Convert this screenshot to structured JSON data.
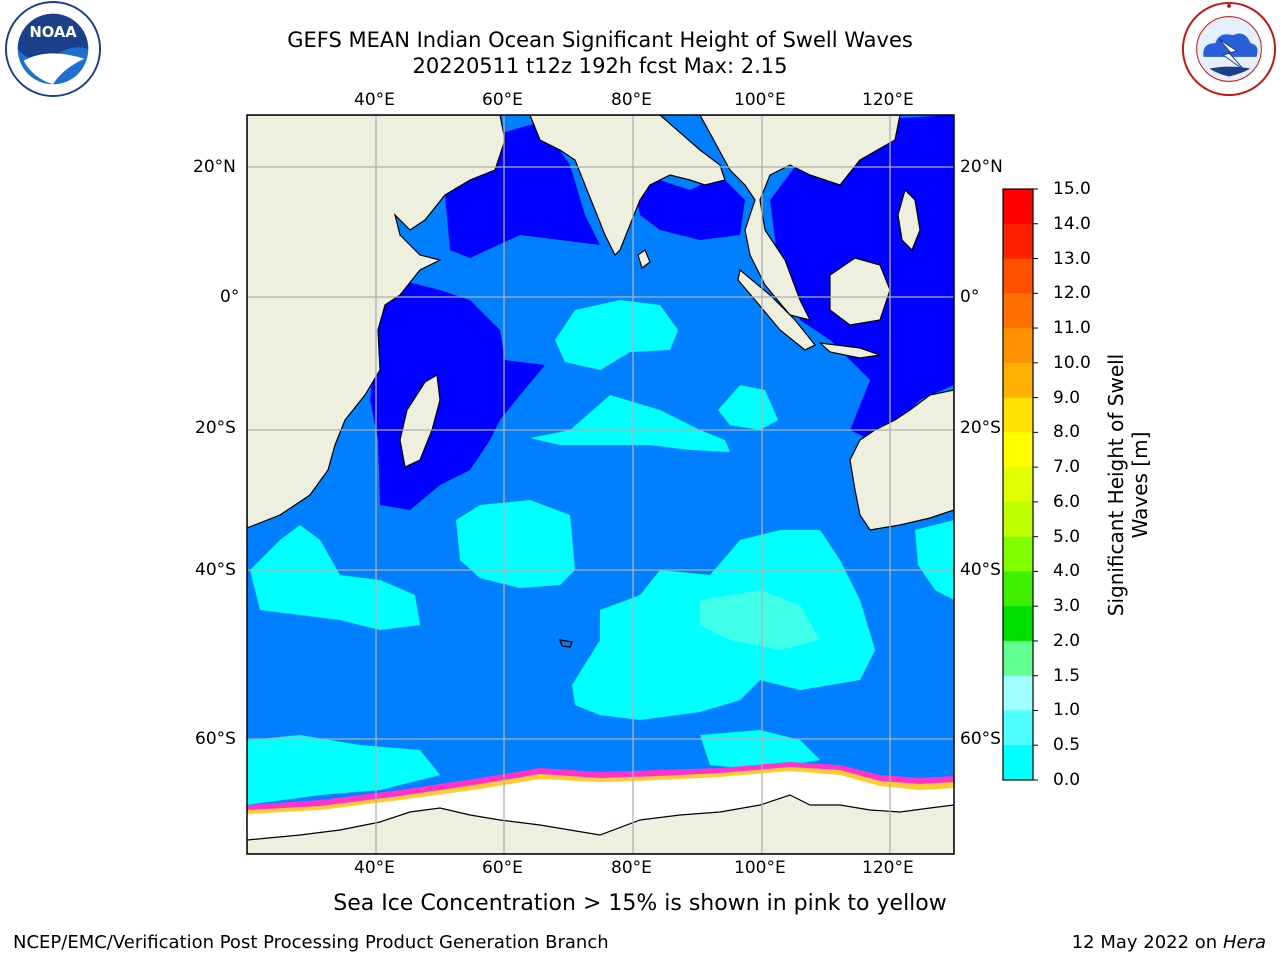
{
  "header": {
    "title": "GEFS MEAN Indian Ocean Significant Height of Swell Waves",
    "subtitle": "20220511 t12z 192h fcst   Max: 2.15"
  },
  "logos": {
    "noaa": "NOAA",
    "noaa_ring_text": "NATIONAL OCEANIC AND ATMOSPHERIC ADMINISTRATION · U.S. DEPARTMENT OF COMMERCE",
    "nws_ring_text": "NATIONAL WEATHER SERVICE"
  },
  "map": {
    "region": "Indian Ocean",
    "lon_range": [
      20.5,
      130
    ],
    "lat_range": [
      -75,
      27
    ],
    "lon_ticks": [
      "40°E",
      "60°E",
      "80°E",
      "100°E",
      "120°E"
    ],
    "lat_ticks": [
      "20°N",
      "0°",
      "20°S",
      "40°S",
      "60°S"
    ],
    "colors": {
      "land": "#efefdf",
      "sea_ice": "#ffffff",
      "grid": "#b0b0b0",
      "swell_0_0p5": "#0000ff",
      "swell_0p5_1": "#0080ff",
      "swell_1_1p5": "#00ffff",
      "swell_1p5_2": "#40ffe8",
      "ice_edge": "#ff33cc",
      "ice_inner": "#ffcc33"
    }
  },
  "colorbar": {
    "title_line1": "Significant Height of Swell",
    "title_line2": "Waves [m]",
    "labels": [
      "15.0",
      "14.0",
      "13.0",
      "12.0",
      "11.0",
      "10.0",
      "9.0",
      "8.0",
      "7.0",
      "6.0",
      "5.0",
      "4.0",
      "3.0",
      "2.0",
      "1.5",
      "1.0",
      "0.5",
      "0.0"
    ],
    "colors": [
      "#ff0000",
      "#ff2000",
      "#ff5000",
      "#ff7000",
      "#ff9000",
      "#ffb000",
      "#ffe000",
      "#ffff00",
      "#e0ff00",
      "#c0ff00",
      "#80ff00",
      "#40f000",
      "#00e000",
      "#60ff90",
      "#a0ffff",
      "#50ffff",
      "#00ffff",
      "#0080ff",
      "#0000ff"
    ]
  },
  "notes": {
    "sea_ice": "Sea Ice Concentration > 15% is shown in pink to yellow"
  },
  "footer": {
    "left": "NCEP/EMC/Verification Post Processing Product Generation Branch",
    "right_date": "12 May 2022 on",
    "right_host": "Hera"
  }
}
